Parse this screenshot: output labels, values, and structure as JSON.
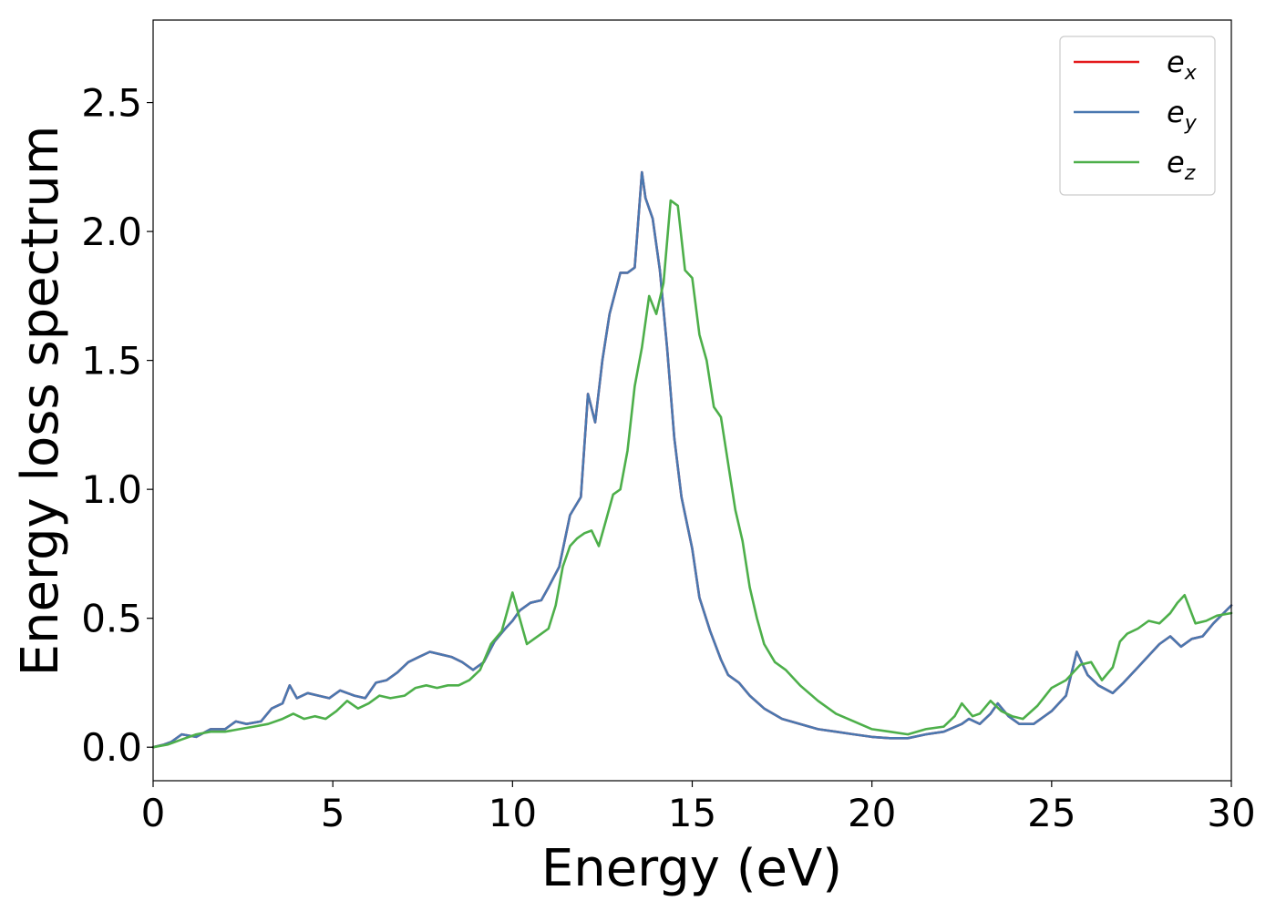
{
  "chart_data": {
    "type": "line",
    "title": "",
    "xlabel": "Energy (eV)",
    "ylabel": "Energy loss spectrum",
    "xlim": [
      0,
      30
    ],
    "ylim": [
      -0.13,
      2.82
    ],
    "xticks": [
      0,
      5,
      10,
      15,
      20,
      25,
      30
    ],
    "xtick_labels": [
      "0",
      "5",
      "10",
      "15",
      "20",
      "25",
      "30"
    ],
    "yticks": [
      0.0,
      0.5,
      1.0,
      1.5,
      2.0,
      2.5
    ],
    "ytick_labels": [
      "0.0",
      "0.5",
      "1.0",
      "1.5",
      "2.0",
      "2.5"
    ],
    "grid": false,
    "legend_position": "top-right",
    "series": [
      {
        "name": "e_x",
        "label_base": "e",
        "label_sub": "x",
        "color": "#e41a1c",
        "x": [
          0,
          0.3,
          0.5,
          0.8,
          1.2,
          1.6,
          2.0,
          2.3,
          2.6,
          3.0,
          3.3,
          3.6,
          3.8,
          4.0,
          4.3,
          4.6,
          4.9,
          5.2,
          5.6,
          5.9,
          6.2,
          6.5,
          6.8,
          7.1,
          7.4,
          7.7,
          8.0,
          8.3,
          8.6,
          8.9,
          9.2,
          9.5,
          9.8,
          10.0,
          10.2,
          10.5,
          10.8,
          11.0,
          11.3,
          11.6,
          11.9,
          12.1,
          12.3,
          12.5,
          12.7,
          13.0,
          13.2,
          13.4,
          13.6,
          13.7,
          13.9,
          14.1,
          14.3,
          14.5,
          14.7,
          15.0,
          15.2,
          15.5,
          15.8,
          16.0,
          16.3,
          16.6,
          17.0,
          17.5,
          18.0,
          18.5,
          19.0,
          19.5,
          20.0,
          20.5,
          21.0,
          21.5,
          22.0,
          22.5,
          22.7,
          23.0,
          23.3,
          23.5,
          23.8,
          24.1,
          24.5,
          25.0,
          25.4,
          25.7,
          26.0,
          26.3,
          26.7,
          27.0,
          27.4,
          27.8,
          28.0,
          28.3,
          28.6,
          28.9,
          29.2,
          29.5,
          30.0
        ],
        "y": [
          0.0,
          0.01,
          0.02,
          0.05,
          0.04,
          0.07,
          0.07,
          0.1,
          0.09,
          0.1,
          0.15,
          0.17,
          0.24,
          0.19,
          0.21,
          0.2,
          0.19,
          0.22,
          0.2,
          0.19,
          0.25,
          0.26,
          0.29,
          0.33,
          0.35,
          0.37,
          0.36,
          0.35,
          0.33,
          0.3,
          0.33,
          0.41,
          0.46,
          0.49,
          0.53,
          0.56,
          0.57,
          0.62,
          0.7,
          0.9,
          0.97,
          1.37,
          1.26,
          1.5,
          1.68,
          1.84,
          1.84,
          1.86,
          2.23,
          2.13,
          2.05,
          1.85,
          1.55,
          1.2,
          0.97,
          0.77,
          0.58,
          0.45,
          0.34,
          0.28,
          0.25,
          0.2,
          0.15,
          0.11,
          0.09,
          0.07,
          0.06,
          0.05,
          0.04,
          0.035,
          0.035,
          0.05,
          0.06,
          0.09,
          0.11,
          0.09,
          0.13,
          0.17,
          0.12,
          0.09,
          0.09,
          0.14,
          0.2,
          0.37,
          0.28,
          0.24,
          0.21,
          0.25,
          0.31,
          0.37,
          0.4,
          0.43,
          0.39,
          0.42,
          0.43,
          0.48,
          0.55
        ]
      },
      {
        "name": "e_y",
        "label_base": "e",
        "label_sub": "y",
        "color": "#4a78b0",
        "x": [
          0,
          0.3,
          0.5,
          0.8,
          1.2,
          1.6,
          2.0,
          2.3,
          2.6,
          3.0,
          3.3,
          3.6,
          3.8,
          4.0,
          4.3,
          4.6,
          4.9,
          5.2,
          5.6,
          5.9,
          6.2,
          6.5,
          6.8,
          7.1,
          7.4,
          7.7,
          8.0,
          8.3,
          8.6,
          8.9,
          9.2,
          9.5,
          9.8,
          10.0,
          10.2,
          10.5,
          10.8,
          11.0,
          11.3,
          11.6,
          11.9,
          12.1,
          12.3,
          12.5,
          12.7,
          13.0,
          13.2,
          13.4,
          13.6,
          13.7,
          13.9,
          14.1,
          14.3,
          14.5,
          14.7,
          15.0,
          15.2,
          15.5,
          15.8,
          16.0,
          16.3,
          16.6,
          17.0,
          17.5,
          18.0,
          18.5,
          19.0,
          19.5,
          20.0,
          20.5,
          21.0,
          21.5,
          22.0,
          22.5,
          22.7,
          23.0,
          23.3,
          23.5,
          23.8,
          24.1,
          24.5,
          25.0,
          25.4,
          25.7,
          26.0,
          26.3,
          26.7,
          27.0,
          27.4,
          27.8,
          28.0,
          28.3,
          28.6,
          28.9,
          29.2,
          29.5,
          30.0
        ],
        "y": [
          0.0,
          0.01,
          0.02,
          0.05,
          0.04,
          0.07,
          0.07,
          0.1,
          0.09,
          0.1,
          0.15,
          0.17,
          0.24,
          0.19,
          0.21,
          0.2,
          0.19,
          0.22,
          0.2,
          0.19,
          0.25,
          0.26,
          0.29,
          0.33,
          0.35,
          0.37,
          0.36,
          0.35,
          0.33,
          0.3,
          0.33,
          0.41,
          0.46,
          0.49,
          0.53,
          0.56,
          0.57,
          0.62,
          0.7,
          0.9,
          0.97,
          1.37,
          1.26,
          1.5,
          1.68,
          1.84,
          1.84,
          1.86,
          2.23,
          2.13,
          2.05,
          1.85,
          1.55,
          1.2,
          0.97,
          0.77,
          0.58,
          0.45,
          0.34,
          0.28,
          0.25,
          0.2,
          0.15,
          0.11,
          0.09,
          0.07,
          0.06,
          0.05,
          0.04,
          0.035,
          0.035,
          0.05,
          0.06,
          0.09,
          0.11,
          0.09,
          0.13,
          0.17,
          0.12,
          0.09,
          0.09,
          0.14,
          0.2,
          0.37,
          0.28,
          0.24,
          0.21,
          0.25,
          0.31,
          0.37,
          0.4,
          0.43,
          0.39,
          0.42,
          0.43,
          0.48,
          0.55
        ]
      },
      {
        "name": "e_z",
        "label_base": "e",
        "label_sub": "z",
        "color": "#4daf4a",
        "x": [
          0,
          0.4,
          0.8,
          1.2,
          1.6,
          2.0,
          2.4,
          2.8,
          3.2,
          3.6,
          3.9,
          4.2,
          4.5,
          4.8,
          5.1,
          5.4,
          5.7,
          6.0,
          6.3,
          6.6,
          7.0,
          7.3,
          7.6,
          7.9,
          8.2,
          8.5,
          8.8,
          9.1,
          9.4,
          9.7,
          10.0,
          10.2,
          10.4,
          10.6,
          10.8,
          11.0,
          11.2,
          11.4,
          11.6,
          11.8,
          12.0,
          12.2,
          12.4,
          12.6,
          12.8,
          13.0,
          13.2,
          13.4,
          13.6,
          13.8,
          14.0,
          14.2,
          14.4,
          14.6,
          14.8,
          15.0,
          15.2,
          15.4,
          15.6,
          15.8,
          16.0,
          16.2,
          16.4,
          16.6,
          16.8,
          17.0,
          17.3,
          17.6,
          18.0,
          18.5,
          19.0,
          19.5,
          20.0,
          20.5,
          21.0,
          21.5,
          22.0,
          22.3,
          22.5,
          22.8,
          23.0,
          23.3,
          23.6,
          23.9,
          24.2,
          24.6,
          25.0,
          25.4,
          25.8,
          26.1,
          26.4,
          26.7,
          26.9,
          27.1,
          27.4,
          27.7,
          28.0,
          28.3,
          28.5,
          28.7,
          29.0,
          29.3,
          29.6,
          30.0
        ],
        "y": [
          0.0,
          0.01,
          0.03,
          0.05,
          0.06,
          0.06,
          0.07,
          0.08,
          0.09,
          0.11,
          0.13,
          0.11,
          0.12,
          0.11,
          0.14,
          0.18,
          0.15,
          0.17,
          0.2,
          0.19,
          0.2,
          0.23,
          0.24,
          0.23,
          0.24,
          0.24,
          0.26,
          0.3,
          0.4,
          0.45,
          0.6,
          0.5,
          0.4,
          0.42,
          0.44,
          0.46,
          0.55,
          0.7,
          0.78,
          0.81,
          0.83,
          0.84,
          0.78,
          0.88,
          0.98,
          1.0,
          1.15,
          1.4,
          1.55,
          1.75,
          1.68,
          1.8,
          2.12,
          2.1,
          1.85,
          1.82,
          1.6,
          1.5,
          1.32,
          1.28,
          1.1,
          0.92,
          0.8,
          0.62,
          0.5,
          0.4,
          0.33,
          0.3,
          0.24,
          0.18,
          0.13,
          0.1,
          0.07,
          0.06,
          0.05,
          0.07,
          0.08,
          0.12,
          0.17,
          0.12,
          0.13,
          0.18,
          0.14,
          0.12,
          0.11,
          0.16,
          0.23,
          0.26,
          0.32,
          0.33,
          0.26,
          0.31,
          0.41,
          0.44,
          0.46,
          0.49,
          0.48,
          0.52,
          0.56,
          0.59,
          0.48,
          0.49,
          0.51,
          0.52
        ]
      }
    ]
  }
}
